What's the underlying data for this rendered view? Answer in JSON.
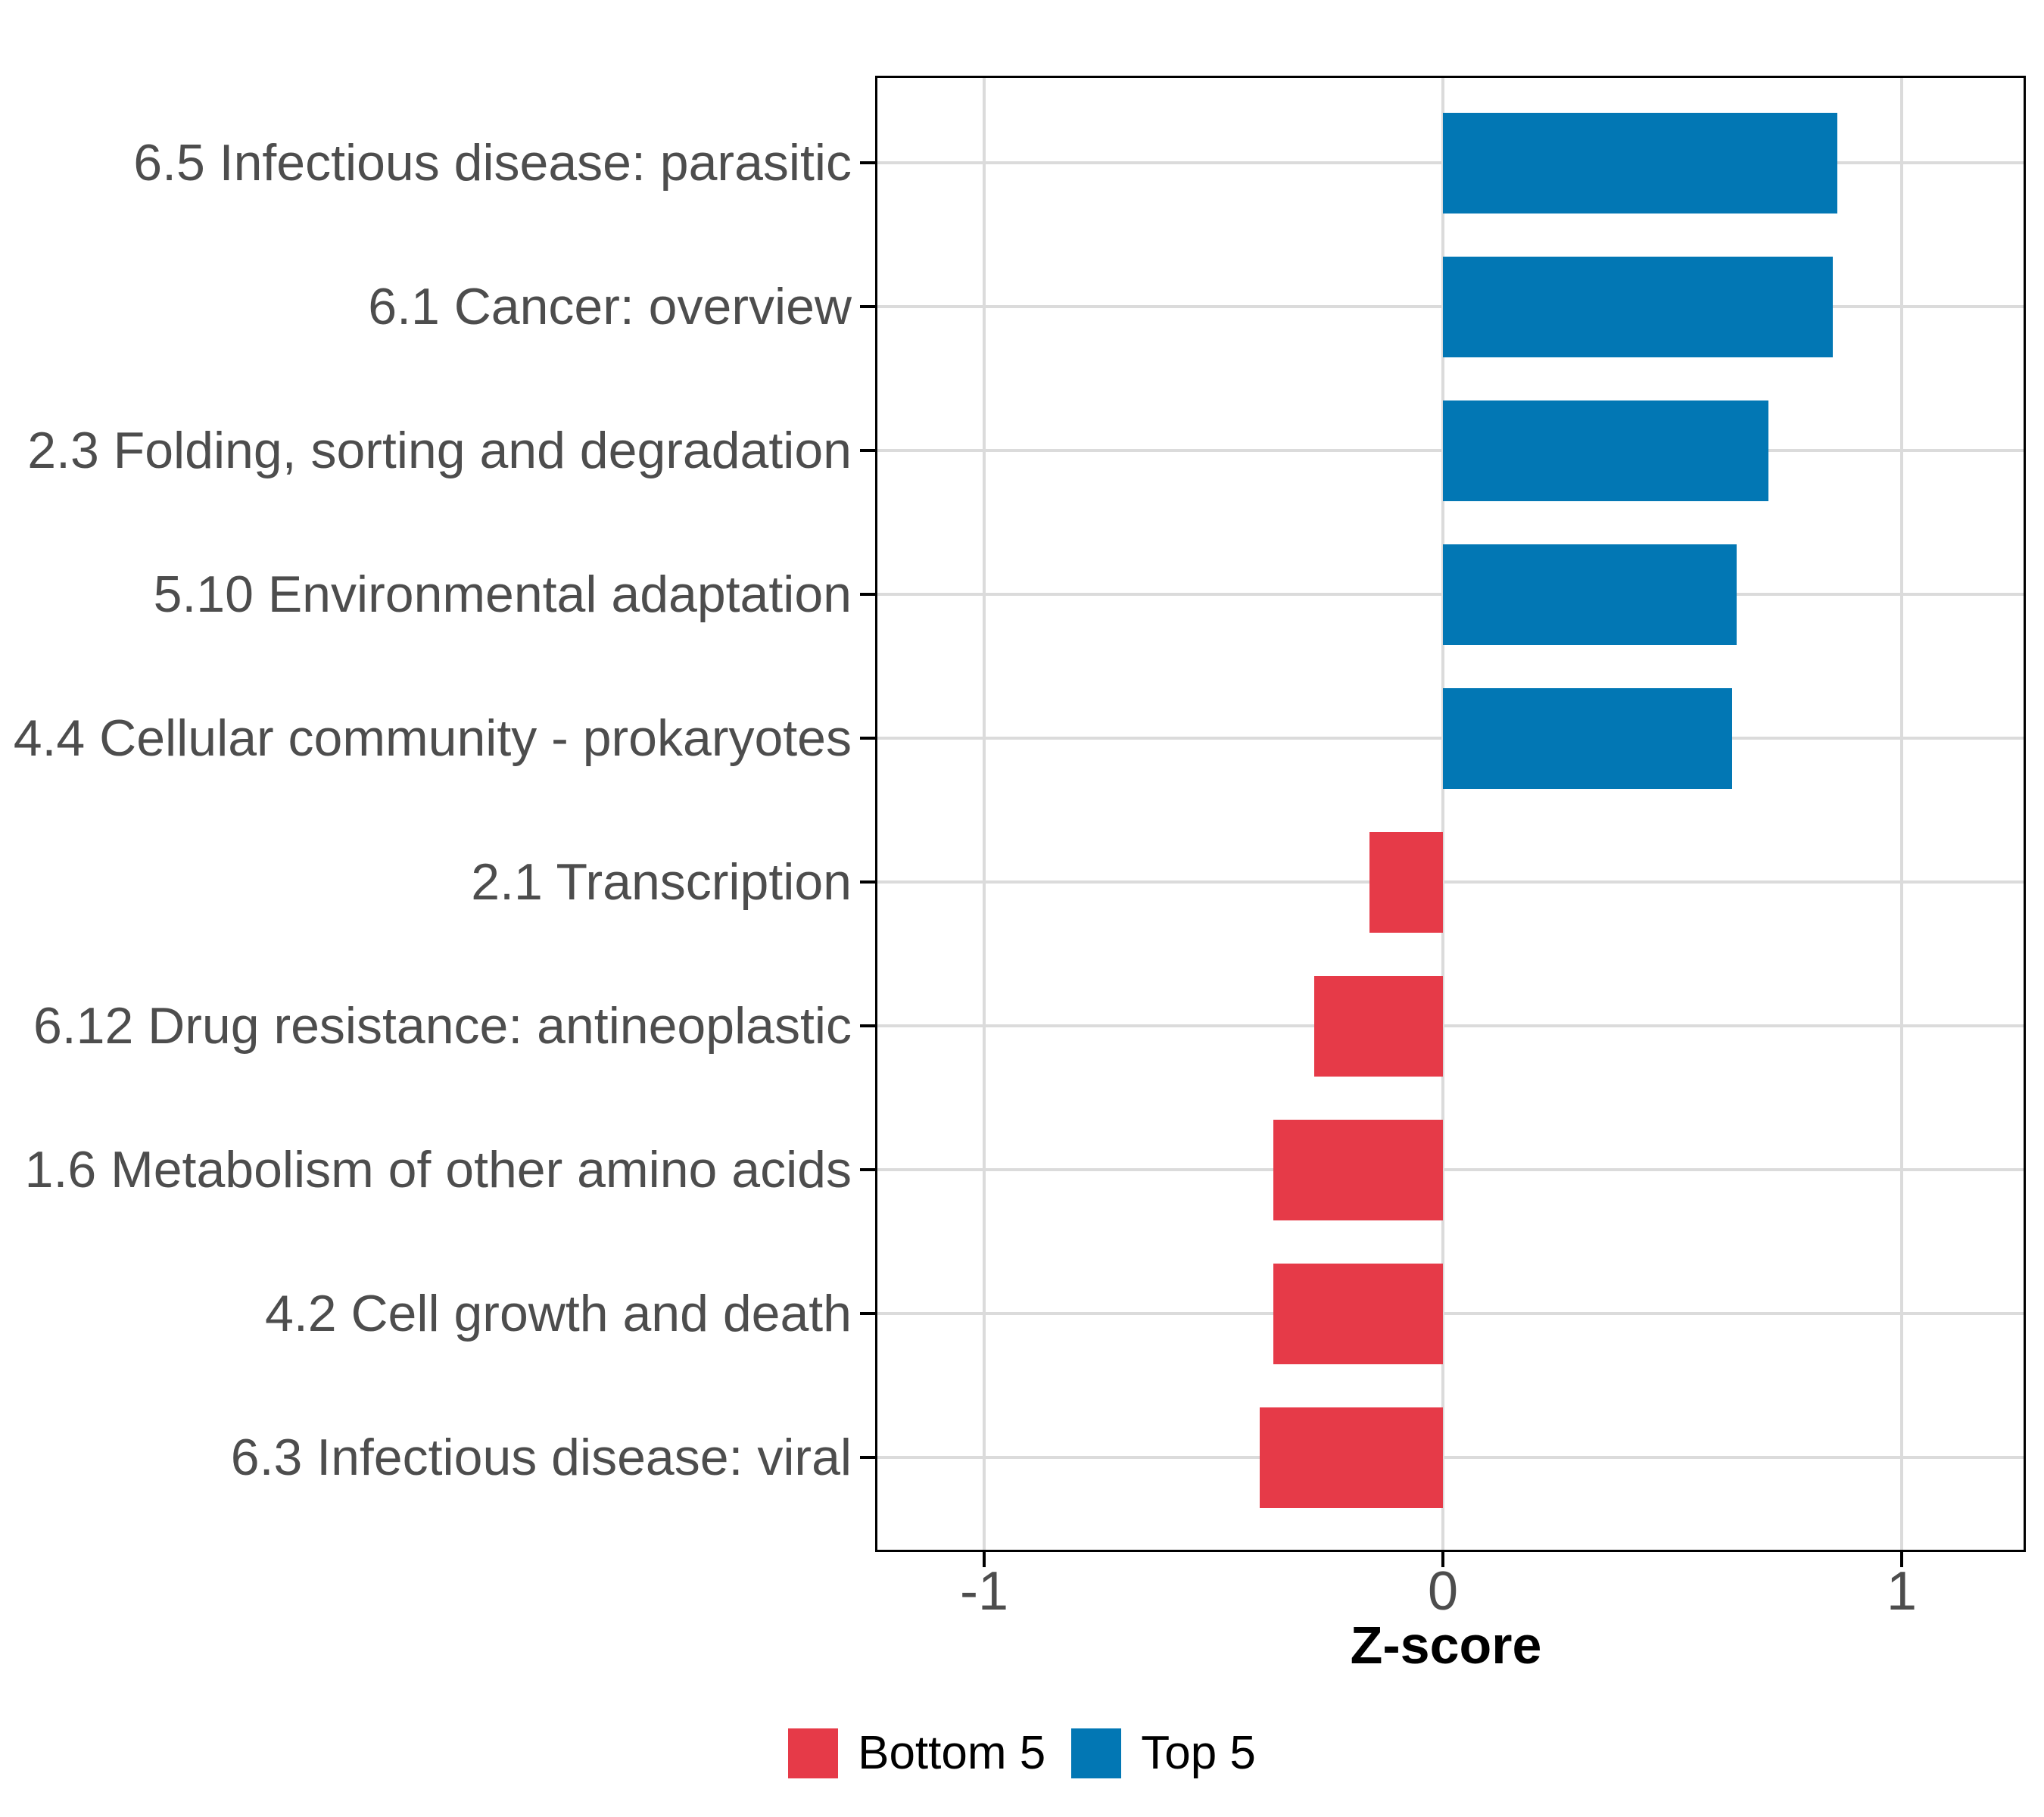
{
  "chart_data": {
    "type": "bar",
    "orientation": "horizontal",
    "title": "",
    "xlabel": "Z-score",
    "ylabel": "",
    "x_ticks": [
      "-1",
      "0",
      "1"
    ],
    "x_tick_values": [
      -1,
      0,
      1
    ],
    "xlim": [
      -1.23,
      1.28
    ],
    "grid": "major-only",
    "categories": [
      "6.5 Infectious disease: parasitic",
      "6.1 Cancer: overview",
      "2.3 Folding, sorting and degradation",
      "5.10 Environmental adaptation",
      "4.4 Cellular community - prokaryotes",
      "2.1 Transcription",
      "6.12 Drug resistance: antineoplastic",
      "1.6 Metabolism of other amino acids",
      "4.2 Cell growth and death",
      "6.3 Infectious disease: viral"
    ],
    "values": [
      0.86,
      0.85,
      0.71,
      0.64,
      0.63,
      -0.16,
      -0.28,
      -0.37,
      -0.37,
      -0.4
    ],
    "group_by_point": [
      "Top 5",
      "Top 5",
      "Top 5",
      "Top 5",
      "Top 5",
      "Bottom 5",
      "Bottom 5",
      "Bottom 5",
      "Bottom 5",
      "Bottom 5"
    ],
    "legend": {
      "position": "bottom",
      "entries": [
        {
          "label": "Bottom 5",
          "color": "#E63A48"
        },
        {
          "label": "Top 5",
          "color": "#0277B4"
        }
      ]
    },
    "colors": {
      "top5_bar": "#0277B4",
      "bottom5_bar": "#E63A48",
      "gridline": "#DBDBDB",
      "axis_text": "#4D4D4D",
      "panel_border": "#000000",
      "background": "#FFFFFF"
    }
  }
}
